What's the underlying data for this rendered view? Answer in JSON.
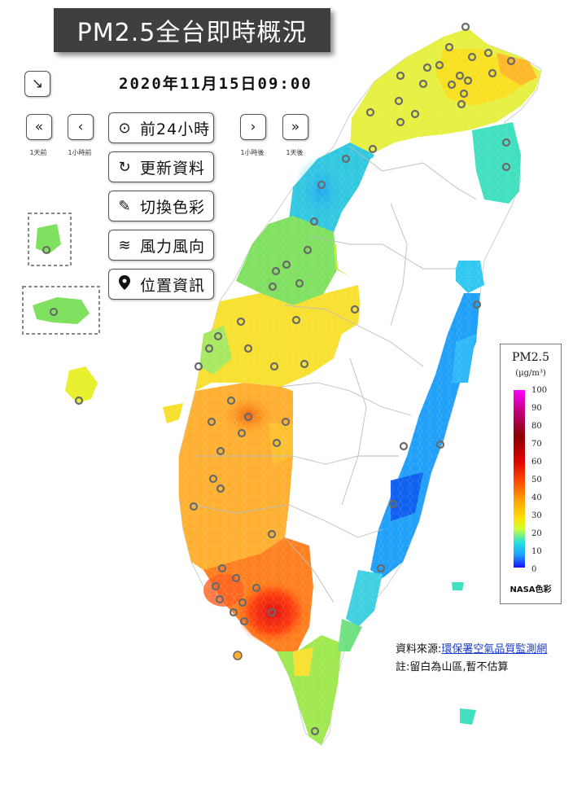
{
  "header": {
    "title": "PM2.5全台即時概況",
    "datetime": "2020年11月15日09:00"
  },
  "controls": {
    "minimize_icon": "arrow-down-right-icon",
    "step_buttons": [
      {
        "symbol": "«",
        "caption": "1天前",
        "icon": "double-chevron-left-icon"
      },
      {
        "symbol": "‹",
        "caption": "1小時前",
        "icon": "chevron-left-icon"
      },
      {
        "symbol": "›",
        "caption": "1小時後",
        "icon": "chevron-right-icon"
      },
      {
        "symbol": "»",
        "caption": "1天後",
        "icon": "double-chevron-right-icon"
      }
    ],
    "menu": [
      {
        "label": "前24小時",
        "icon": "play-circle-icon",
        "glyph": "▶"
      },
      {
        "label": "更新資料",
        "icon": "refresh-icon",
        "glyph": "↻"
      },
      {
        "label": "切換色彩",
        "icon": "paint-brush-icon",
        "glyph": "✎"
      },
      {
        "label": "風力風向",
        "icon": "wind-icon",
        "glyph": "≋"
      },
      {
        "label": "位置資訊",
        "icon": "map-pin-icon",
        "glyph": "⬤"
      }
    ]
  },
  "legend": {
    "title": "PM2.5",
    "unit": "(µg/m³)",
    "ticks": [
      "100",
      "90",
      "80",
      "70",
      "60",
      "50",
      "40",
      "30",
      "20",
      "10",
      "0"
    ],
    "caption": "NASA色彩",
    "colors": {
      "top": "#ff00ff",
      "high": "#e00000",
      "mid": "#ffa000",
      "low": "#d0ff30",
      "lowest": "#1010ff"
    }
  },
  "footer": {
    "source_prefix": "資料來源:",
    "source_link": "環保署空氣品質監測網",
    "note": "註:留白為山區,暫不估算"
  },
  "map": {
    "regions": [
      {
        "name": "north",
        "pm25": 22
      },
      {
        "name": "northwest-coast",
        "pm25": 10
      },
      {
        "name": "central-west",
        "pm25": 22
      },
      {
        "name": "chiayi-tainan",
        "pm25": 32
      },
      {
        "name": "kaohsiung-pingtung",
        "pm25": 45
      },
      {
        "name": "east-coast",
        "pm25": 8
      },
      {
        "name": "southern-tip",
        "pm25": 18
      }
    ]
  }
}
